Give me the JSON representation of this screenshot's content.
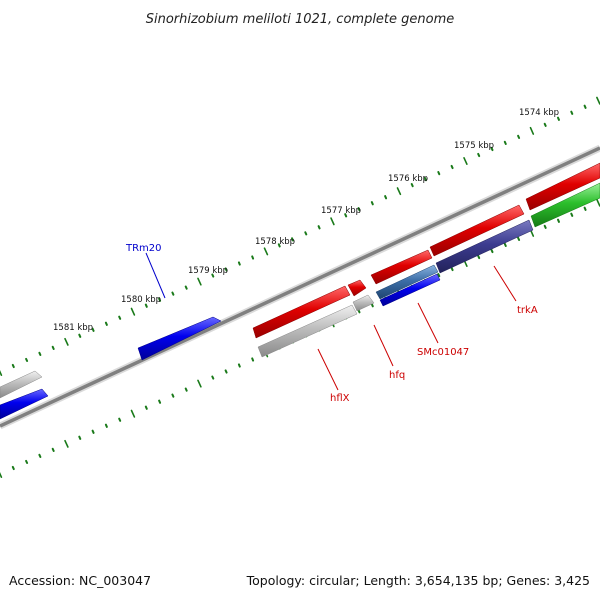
{
  "title": "Sinorhizobium meliloti 1021, complete genome",
  "accession": "Accession: NC_003047",
  "summary": "Topology: circular; Length: 3,654,135 bp; Genes: 3,425",
  "tick_labels": [
    "1574 kbp",
    "1575 kbp",
    "1576 kbp",
    "1577 kbp",
    "1578 kbp",
    "1579 kbp",
    "1580 kbp",
    "1581 kbp"
  ],
  "genes": {
    "trm20": {
      "label": "TRm20",
      "color": "#0000cc"
    },
    "hflx": {
      "label": "hflX",
      "color": "#cc0000"
    },
    "hfq": {
      "label": "hfq",
      "color": "#cc0000"
    },
    "smc01047": {
      "label": "SMc01047",
      "color": "#cc0000"
    },
    "trka": {
      "label": "trkA",
      "color": "#cc0000"
    }
  },
  "colors": {
    "forward_gene": "#e00000",
    "forward_rna": "#0000ee",
    "reverse_gene": "#b4b4b4",
    "reverse_blue": "#0000ee",
    "reverse_steel": "#3d6fa8",
    "reverse_navy": "#3c3c90",
    "reverse_green": "#2cbf2c",
    "backbone": "#7a7a7a",
    "ticks": "#1a7a1a"
  }
}
